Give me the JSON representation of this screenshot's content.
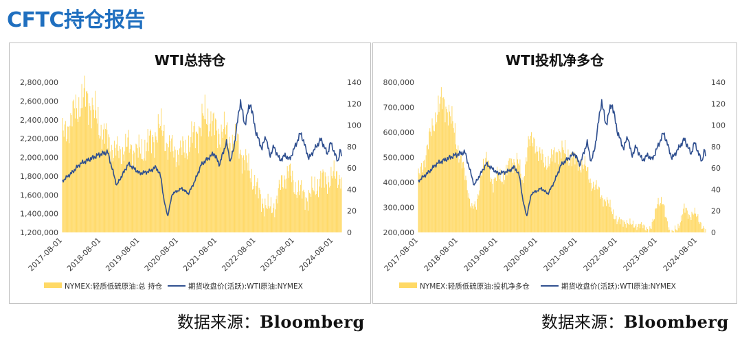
{
  "page": {
    "title": "CFTC持仓报告",
    "source_label_left": "数据来源：",
    "source_value_left": "Bloomberg",
    "source_label_right": "数据来源：",
    "source_value_right": "Bloomberg"
  },
  "colors": {
    "bar": "#ffd966",
    "line": "#2f4f8f",
    "axis_text": "#404040"
  },
  "chart_data": [
    {
      "type": "bar",
      "title": "WTI总持仓",
      "x_type": "date",
      "x_range": [
        "2017-08-01",
        "2024-10-15"
      ],
      "x_ticks": [
        "2017-08-01",
        "2018-08-01",
        "2019-08-01",
        "2020-08-01",
        "2021-08-01",
        "2022-08-01",
        "2023-08-01",
        "2024-08-01"
      ],
      "y_left": {
        "min": 1200000,
        "max": 2800000,
        "step": 200000,
        "tick_labels": [
          "1,200,000",
          "1,400,000",
          "1,600,000",
          "1,800,000",
          "2,000,000",
          "2,200,000",
          "2,400,000",
          "2,600,000",
          "2,800,000"
        ]
      },
      "y_right": {
        "min": 0,
        "max": 140,
        "step": 20,
        "tick_labels": [
          "0",
          "20",
          "40",
          "60",
          "80",
          "100",
          "120",
          "140"
        ]
      },
      "legend_position": "bottom",
      "series": [
        {
          "name": "NYMEX:轻质低硫原油:总 持仓",
          "kind": "bar",
          "axis": "left",
          "points": [
            [
              "2017-08-01",
              2230000
            ],
            [
              "2017-10-01",
              2350000
            ],
            [
              "2017-12-01",
              2500000
            ],
            [
              "2018-02-01",
              2600000
            ],
            [
              "2018-03-15",
              2650000
            ],
            [
              "2018-05-01",
              2540000
            ],
            [
              "2018-06-15",
              2430000
            ],
            [
              "2018-08-01",
              2280000
            ],
            [
              "2018-10-01",
              2190000
            ],
            [
              "2018-12-01",
              2060000
            ],
            [
              "2019-02-01",
              2050000
            ],
            [
              "2019-04-01",
              2120000
            ],
            [
              "2019-06-01",
              2080000
            ],
            [
              "2019-08-01",
              2040000
            ],
            [
              "2019-10-01",
              2120000
            ],
            [
              "2019-12-01",
              2190000
            ],
            [
              "2020-02-01",
              2310000
            ],
            [
              "2020-03-15",
              2280000
            ],
            [
              "2020-04-15",
              2120000
            ],
            [
              "2020-06-01",
              2090000
            ],
            [
              "2020-08-01",
              2040000
            ],
            [
              "2020-10-01",
              2090000
            ],
            [
              "2020-12-01",
              2190000
            ],
            [
              "2021-02-01",
              2290000
            ],
            [
              "2021-04-01",
              2430000
            ],
            [
              "2021-06-01",
              2400000
            ],
            [
              "2021-08-01",
              2250000
            ],
            [
              "2021-10-01",
              2300000
            ],
            [
              "2021-12-01",
              2170000
            ],
            [
              "2022-02-01",
              2170000
            ],
            [
              "2022-04-01",
              2000000
            ],
            [
              "2022-06-01",
              1860000
            ],
            [
              "2022-08-01",
              1680000
            ],
            [
              "2022-10-01",
              1530000
            ],
            [
              "2022-12-01",
              1450000
            ],
            [
              "2023-02-01",
              1500000
            ],
            [
              "2023-04-01",
              1740000
            ],
            [
              "2023-06-01",
              1850000
            ],
            [
              "2023-08-01",
              1700000
            ],
            [
              "2023-10-01",
              1620000
            ],
            [
              "2023-12-01",
              1570000
            ],
            [
              "2024-02-01",
              1660000
            ],
            [
              "2024-04-01",
              1760000
            ],
            [
              "2024-06-01",
              1760000
            ],
            [
              "2024-08-01",
              1800000
            ],
            [
              "2024-10-15",
              1800000
            ]
          ]
        },
        {
          "name": "期货收盘价(活跃):WTI原油:NYMEX",
          "kind": "line",
          "axis": "right",
          "points": [
            [
              "2017-08-01",
              48
            ],
            [
              "2017-11-01",
              56
            ],
            [
              "2018-01-15",
              64
            ],
            [
              "2018-05-01",
              69
            ],
            [
              "2018-07-01",
              72
            ],
            [
              "2018-10-01",
              75
            ],
            [
              "2018-12-25",
              44
            ],
            [
              "2019-04-15",
              64
            ],
            [
              "2019-08-01",
              55
            ],
            [
              "2019-11-01",
              57
            ],
            [
              "2020-01-01",
              61
            ],
            [
              "2020-02-15",
              52
            ],
            [
              "2020-03-15",
              30
            ],
            [
              "2020-04-20",
              15
            ],
            [
              "2020-06-01",
              36
            ],
            [
              "2020-09-01",
              41
            ],
            [
              "2020-11-01",
              36
            ],
            [
              "2021-01-01",
              48
            ],
            [
              "2021-03-01",
              63
            ],
            [
              "2021-07-01",
              74
            ],
            [
              "2021-08-20",
              63
            ],
            [
              "2021-10-25",
              84
            ],
            [
              "2021-12-01",
              66
            ],
            [
              "2022-01-01",
              77
            ],
            [
              "2022-03-07",
              123
            ],
            [
              "2022-04-15",
              100
            ],
            [
              "2022-06-08",
              121
            ],
            [
              "2022-08-01",
              93
            ],
            [
              "2022-09-25",
              78
            ],
            [
              "2022-11-01",
              90
            ],
            [
              "2022-12-09",
              71
            ],
            [
              "2023-01-15",
              80
            ],
            [
              "2023-03-17",
              67
            ],
            [
              "2023-05-01",
              72
            ],
            [
              "2023-06-15",
              68
            ],
            [
              "2023-09-27",
              93
            ],
            [
              "2023-12-12",
              69
            ],
            [
              "2024-04-05",
              87
            ],
            [
              "2024-06-04",
              73
            ],
            [
              "2024-07-05",
              84
            ],
            [
              "2024-09-10",
              66
            ],
            [
              "2024-10-07",
              78
            ],
            [
              "2024-10-15",
              70
            ]
          ]
        }
      ]
    },
    {
      "type": "bar",
      "title": "WTI投机净多仓",
      "x_type": "date",
      "x_range": [
        "2017-08-01",
        "2024-10-15"
      ],
      "x_ticks": [
        "2017-08-01",
        "2018-08-01",
        "2019-08-01",
        "2020-08-01",
        "2021-08-01",
        "2022-08-01",
        "2023-08-01",
        "2024-08-01"
      ],
      "y_left": {
        "min": 200000,
        "max": 800000,
        "step": 100000,
        "tick_labels": [
          "200,000",
          "300,000",
          "400,000",
          "500,000",
          "600,000",
          "700,000",
          "800,000"
        ]
      },
      "y_right": {
        "min": 0,
        "max": 140,
        "step": 20,
        "tick_labels": [
          "0",
          "20",
          "40",
          "60",
          "80",
          "100",
          "120",
          "140"
        ]
      },
      "legend_position": "bottom",
      "series": [
        {
          "name": "NYMEX:轻质低硫原油:投机净多仓",
          "kind": "bar",
          "axis": "left",
          "points": [
            [
              "2017-08-01",
              420000
            ],
            [
              "2017-10-01",
              500000
            ],
            [
              "2017-12-01",
              610000
            ],
            [
              "2018-02-01",
              700000
            ],
            [
              "2018-03-15",
              725000
            ],
            [
              "2018-05-01",
              690000
            ],
            [
              "2018-07-01",
              600000
            ],
            [
              "2018-08-01",
              530000
            ],
            [
              "2018-10-01",
              430000
            ],
            [
              "2018-12-01",
              300000
            ],
            [
              "2019-01-15",
              300000
            ],
            [
              "2019-03-01",
              450000
            ],
            [
              "2019-05-01",
              490000
            ],
            [
              "2019-06-15",
              390000
            ],
            [
              "2019-08-01",
              430000
            ],
            [
              "2019-10-01",
              420000
            ],
            [
              "2019-12-01",
              490000
            ],
            [
              "2020-02-01",
              480000
            ],
            [
              "2020-03-15",
              400000
            ],
            [
              "2020-05-01",
              550000
            ],
            [
              "2020-07-01",
              570000
            ],
            [
              "2020-08-01",
              520000
            ],
            [
              "2020-10-01",
              480000
            ],
            [
              "2020-12-01",
              490000
            ],
            [
              "2021-02-01",
              530000
            ],
            [
              "2021-04-01",
              520000
            ],
            [
              "2021-06-01",
              500000
            ],
            [
              "2021-08-01",
              480000
            ],
            [
              "2021-10-01",
              470000
            ],
            [
              "2021-12-01",
              400000
            ],
            [
              "2022-02-01",
              370000
            ],
            [
              "2022-04-01",
              330000
            ],
            [
              "2022-06-01",
              300000
            ],
            [
              "2022-08-01",
              240000
            ],
            [
              "2022-10-01",
              245000
            ],
            [
              "2022-12-01",
              230000
            ],
            [
              "2023-02-01",
              230000
            ],
            [
              "2023-04-01",
              220000
            ],
            [
              "2023-06-01",
              215000
            ],
            [
              "2023-07-01",
              250000
            ],
            [
              "2023-08-01",
              330000
            ],
            [
              "2023-09-15",
              320000
            ],
            [
              "2023-10-15",
              260000
            ],
            [
              "2023-12-01",
              200000
            ],
            [
              "2024-02-01",
              210000
            ],
            [
              "2024-04-01",
              300000
            ],
            [
              "2024-05-15",
              260000
            ],
            [
              "2024-07-01",
              290000
            ],
            [
              "2024-08-15",
              240000
            ],
            [
              "2024-10-15",
              215000
            ]
          ]
        },
        {
          "name": "期货收盘价(活跃):WTI原油:NYMEX",
          "kind": "line",
          "axis": "right",
          "points": [
            [
              "2017-08-01",
              48
            ],
            [
              "2017-11-01",
              56
            ],
            [
              "2018-01-15",
              64
            ],
            [
              "2018-05-01",
              69
            ],
            [
              "2018-07-01",
              72
            ],
            [
              "2018-10-01",
              75
            ],
            [
              "2018-12-25",
              44
            ],
            [
              "2019-04-15",
              64
            ],
            [
              "2019-08-01",
              55
            ],
            [
              "2019-11-01",
              57
            ],
            [
              "2020-01-01",
              61
            ],
            [
              "2020-02-15",
              52
            ],
            [
              "2020-03-15",
              30
            ],
            [
              "2020-04-20",
              15
            ],
            [
              "2020-06-01",
              36
            ],
            [
              "2020-09-01",
              41
            ],
            [
              "2020-11-01",
              36
            ],
            [
              "2021-01-01",
              48
            ],
            [
              "2021-03-01",
              63
            ],
            [
              "2021-07-01",
              74
            ],
            [
              "2021-08-20",
              63
            ],
            [
              "2021-10-25",
              84
            ],
            [
              "2021-12-01",
              66
            ],
            [
              "2022-01-01",
              77
            ],
            [
              "2022-03-07",
              123
            ],
            [
              "2022-04-15",
              100
            ],
            [
              "2022-06-08",
              121
            ],
            [
              "2022-08-01",
              93
            ],
            [
              "2022-09-25",
              78
            ],
            [
              "2022-11-01",
              90
            ],
            [
              "2022-12-09",
              71
            ],
            [
              "2023-01-15",
              80
            ],
            [
              "2023-03-17",
              67
            ],
            [
              "2023-05-01",
              72
            ],
            [
              "2023-06-15",
              68
            ],
            [
              "2023-09-27",
              93
            ],
            [
              "2023-12-12",
              69
            ],
            [
              "2024-04-05",
              87
            ],
            [
              "2024-06-04",
              73
            ],
            [
              "2024-07-05",
              84
            ],
            [
              "2024-09-10",
              66
            ],
            [
              "2024-10-07",
              78
            ],
            [
              "2024-10-15",
              70
            ]
          ]
        }
      ]
    }
  ]
}
